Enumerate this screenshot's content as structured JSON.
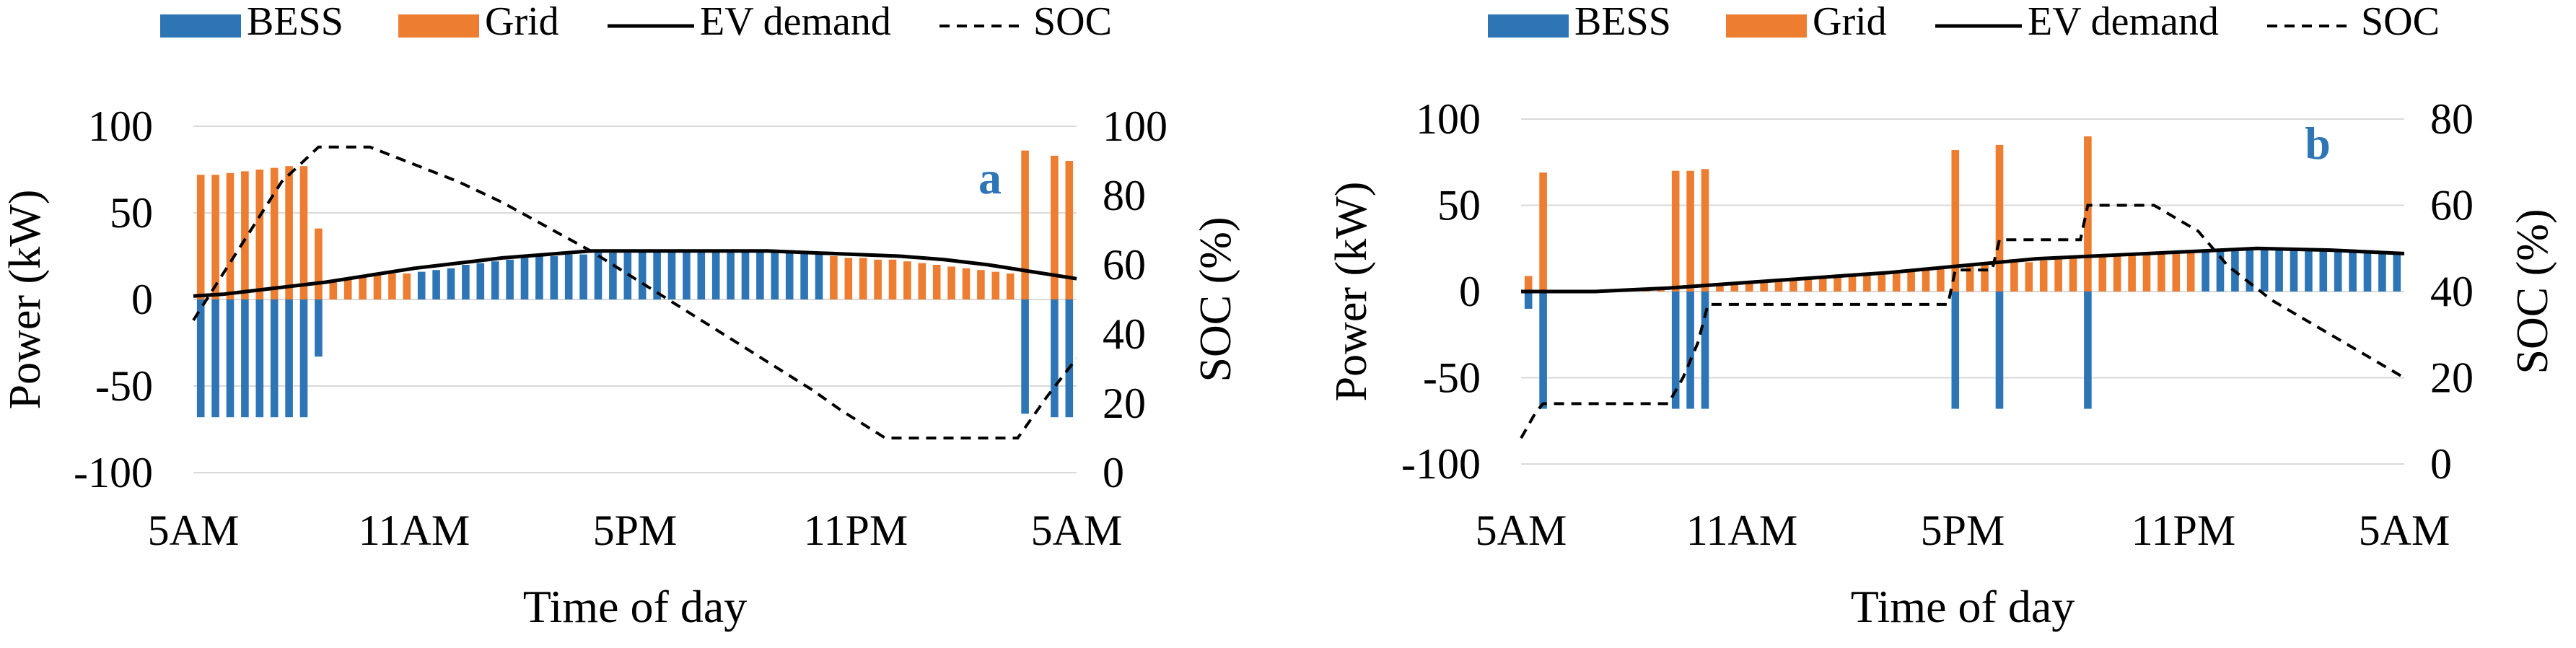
{
  "colors": {
    "bess": "#2E75B6",
    "grid": "#ED7D31",
    "ev_demand": "#000000",
    "soc": "#000000",
    "panel_label": "#2E75B6"
  },
  "chart_data": [
    {
      "id": "a",
      "type": "bar",
      "stacked": true,
      "panel_label": "a",
      "legend": [
        "BESS",
        "Grid",
        "EV demand",
        "SOC"
      ],
      "xlabel": "Time of day",
      "ylabel": "Power (kW)",
      "y2label": "SOC (%)",
      "ylim": [
        -100,
        100
      ],
      "y2lim": [
        0,
        100
      ],
      "yticks": [
        "100",
        "50",
        "0",
        "-50",
        "-100"
      ],
      "y2ticks": [
        "100",
        "80",
        "60",
        "40",
        "20",
        "0"
      ],
      "xticks": [
        "5AM",
        "11AM",
        "5PM",
        "11PM",
        "5AM"
      ],
      "series": [
        {
          "name": "BESS",
          "kind": "bar",
          "values": [
            -68,
            -68,
            -68,
            -68,
            -68,
            -68,
            -68,
            -68,
            -33,
            0,
            0,
            0,
            0,
            0,
            0,
            16,
            17,
            18,
            20,
            21,
            22,
            23,
            24,
            25,
            25,
            26,
            26,
            27,
            27,
            27,
            28,
            28,
            28,
            28,
            28,
            28,
            28,
            28,
            28,
            28,
            27,
            27,
            26,
            0,
            0,
            0,
            0,
            0,
            0,
            0,
            0,
            0,
            0,
            0,
            0,
            0,
            -66,
            0,
            -68,
            -68
          ]
        },
        {
          "name": "Grid",
          "kind": "bar",
          "values": [
            72,
            72,
            73,
            74,
            75,
            76,
            77,
            77,
            41,
            11,
            12,
            13,
            14,
            15,
            15,
            0,
            0,
            0,
            0,
            0,
            0,
            0,
            0,
            0,
            0,
            0,
            0,
            0,
            0,
            0,
            0,
            0,
            0,
            0,
            0,
            0,
            0,
            0,
            0,
            0,
            0,
            0,
            0,
            25,
            24,
            24,
            23,
            23,
            22,
            21,
            20,
            19,
            18,
            17,
            16,
            15,
            86,
            0,
            83,
            80
          ]
        },
        {
          "name": "EV demand",
          "kind": "line",
          "x": [
            0,
            2,
            4,
            6,
            9,
            12,
            15,
            18,
            21,
            24,
            27,
            30,
            33,
            36,
            39,
            42,
            45,
            48,
            51,
            54,
            57,
            60
          ],
          "values": [
            2,
            3,
            5,
            7,
            10,
            14,
            18,
            21,
            24,
            26,
            28,
            28,
            28,
            28,
            28,
            27,
            26,
            25,
            23,
            20,
            16,
            12
          ]
        },
        {
          "name": "SOC",
          "kind": "line",
          "axis": "right",
          "x": [
            0,
            3,
            6,
            8.5,
            12,
            15,
            18,
            21,
            24,
            27,
            30,
            33,
            36,
            39,
            42,
            44,
            47,
            50,
            53,
            56,
            58,
            60
          ],
          "values": [
            44,
            64,
            84,
            94,
            94,
            89,
            84,
            78,
            71,
            64,
            56,
            48,
            40,
            32,
            24,
            18,
            10,
            10,
            10,
            10,
            22,
            33
          ]
        }
      ]
    },
    {
      "id": "b",
      "type": "bar",
      "stacked": true,
      "panel_label": "b",
      "legend": [
        "BESS",
        "Grid",
        "EV demand",
        "SOC"
      ],
      "xlabel": "Time of day",
      "ylabel": "Power (kW)",
      "y2label": "SOC (%)",
      "ylim": [
        -100,
        100
      ],
      "y2lim": [
        0,
        80
      ],
      "yticks": [
        "100",
        "50",
        "0",
        "-50",
        "-100"
      ],
      "y2ticks": [
        "80",
        "60",
        "40",
        "20",
        "0"
      ],
      "xticks": [
        "5AM",
        "11AM",
        "5PM",
        "11PM",
        "5AM"
      ],
      "series": [
        {
          "name": "BESS",
          "kind": "bar",
          "values": [
            -10,
            -68,
            0,
            0,
            0,
            0,
            0,
            0,
            0,
            0,
            -68,
            -68,
            -68,
            0,
            0,
            0,
            0,
            0,
            0,
            0,
            0,
            0,
            0,
            0,
            0,
            0,
            0,
            0,
            0,
            -68,
            0,
            0,
            -68,
            0,
            0,
            0,
            0,
            0,
            -68,
            0,
            0,
            0,
            0,
            0,
            0,
            0,
            24,
            24,
            25,
            25,
            25,
            25,
            25,
            25,
            25,
            24,
            24,
            24,
            23,
            23
          ]
        },
        {
          "name": "Grid",
          "kind": "bar",
          "values": [
            9,
            69,
            0,
            0,
            0,
            0,
            0,
            0,
            2,
            2,
            70,
            70,
            71,
            4,
            5,
            5,
            6,
            6,
            7,
            8,
            9,
            9,
            10,
            11,
            11,
            12,
            13,
            13,
            14,
            82,
            15,
            16,
            85,
            17,
            17,
            18,
            19,
            19,
            90,
            20,
            21,
            21,
            22,
            22,
            23,
            24,
            0,
            0,
            0,
            0,
            0,
            0,
            0,
            0,
            0,
            0,
            0,
            0,
            0,
            0
          ]
        },
        {
          "name": "EV demand",
          "kind": "line",
          "x": [
            0,
            5,
            10,
            15,
            20,
            25,
            30,
            35,
            40,
            45,
            50,
            55,
            60
          ],
          "values": [
            0,
            0,
            2,
            5,
            8,
            11,
            15,
            19,
            21,
            23,
            25,
            24,
            22
          ]
        },
        {
          "name": "SOC",
          "kind": "line",
          "axis": "right",
          "x": [
            0,
            1,
            1.5,
            10,
            11,
            12,
            12.7,
            29,
            29.5,
            32,
            32.5,
            38,
            38.5,
            43,
            46,
            48,
            51,
            54,
            57,
            60
          ],
          "values": [
            6,
            12,
            14,
            14,
            20,
            28,
            37,
            37,
            45,
            45,
            52,
            52,
            60,
            60,
            54,
            46,
            38,
            32,
            26,
            20
          ]
        }
      ]
    }
  ]
}
